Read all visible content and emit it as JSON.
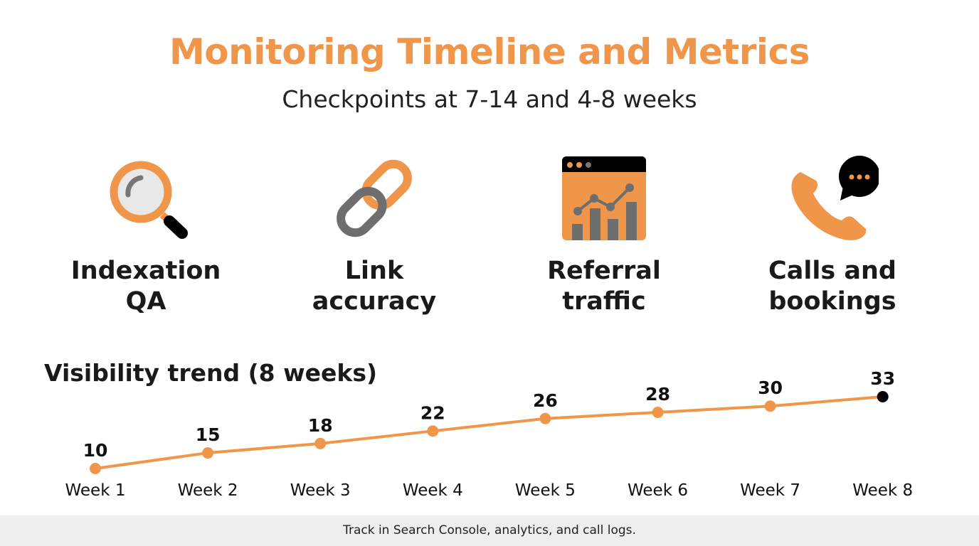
{
  "header": {
    "title": "Monitoring Timeline and Metrics",
    "subtitle": "Checkpoints at 7-14 and 4-8 weeks"
  },
  "metrics": [
    {
      "icon": "magnifying-glass-icon",
      "line1": "Indexation",
      "line2": "QA"
    },
    {
      "icon": "chain-link-icon",
      "line1": "Link",
      "line2": "accuracy"
    },
    {
      "icon": "browser-analytics-chart-icon",
      "line1": "Referral",
      "line2": "traffic"
    },
    {
      "icon": "phone-chat-bubble-icon",
      "line1": "Calls and",
      "line2": "bookings"
    }
  ],
  "colors": {
    "accent": "#f0964a",
    "gray": "#6e6e6e",
    "dark": "#000000",
    "footer_bg": "#eeeeee"
  },
  "chart_data": {
    "type": "line",
    "title": "Visibility trend (8 weeks)",
    "categories": [
      "Week 1",
      "Week 2",
      "Week 3",
      "Week 4",
      "Week 5",
      "Week 6",
      "Week 7",
      "Week 8"
    ],
    "values": [
      10,
      15,
      18,
      22,
      26,
      28,
      30,
      33
    ],
    "data_labels": true,
    "grid": false,
    "highlight_last_point": true
  },
  "footer": {
    "text": "Track in Search Console, analytics, and call logs."
  }
}
